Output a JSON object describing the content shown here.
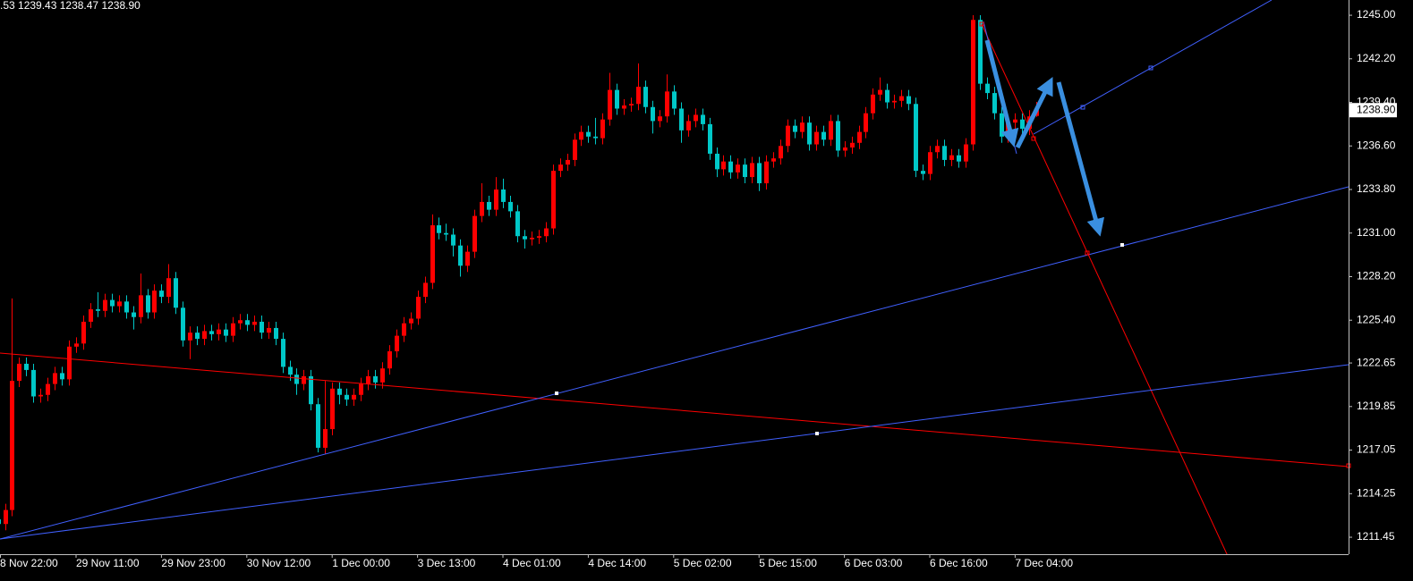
{
  "chart_data": {
    "type": "candlestick",
    "ohlc_label": ".53 1239.43 1238.47 1238.90",
    "current_price_label": "1238.90",
    "up_color": "#ff0000",
    "down_color": "#00c8c8",
    "categories": [
      "8 Nov 22:00",
      null,
      null,
      null,
      null,
      null,
      null,
      null,
      null,
      null,
      null,
      null,
      "29 Nov 11:00",
      null,
      null,
      null,
      null,
      null,
      null,
      null,
      null,
      null,
      null,
      null,
      "29 Nov 23:00",
      null,
      null,
      null,
      null,
      null,
      null,
      null,
      null,
      null,
      null,
      null,
      "30 Nov 12:00",
      null,
      null,
      null,
      null,
      null,
      null,
      null,
      null,
      null,
      null,
      null,
      "1 Dec 00:00",
      null,
      null,
      null,
      null,
      null,
      null,
      null,
      null,
      null,
      null,
      null,
      "3 Dec 13:00",
      null,
      null,
      null,
      null,
      null,
      null,
      null,
      null,
      null,
      null,
      null,
      "4 Dec 01:00",
      null,
      null,
      null,
      null,
      null,
      null,
      null,
      null,
      null,
      null,
      null,
      "4 Dec 14:00",
      null,
      null,
      null,
      null,
      null,
      null,
      null,
      null,
      null,
      null,
      null,
      "5 Dec 02:00",
      null,
      null,
      null,
      null,
      null,
      null,
      null,
      null,
      null,
      null,
      null,
      "5 Dec 15:00",
      null,
      null,
      null,
      null,
      null,
      null,
      null,
      null,
      null,
      null,
      null,
      "6 Dec 03:00",
      null,
      null,
      null,
      null,
      null,
      null,
      null,
      null,
      null,
      null,
      null,
      "6 Dec 16:00",
      null,
      null,
      null,
      null,
      null,
      null,
      null,
      null,
      null,
      null,
      null,
      "7 Dec 04:00",
      null,
      null,
      null
    ],
    "open": [
      1212.8,
      1212.6,
      1212.3,
      1213.2,
      1221.5,
      1222.6,
      1222.2,
      1220.5,
      1220.6,
      1221.3,
      1222.0,
      1221.6,
      1223.7,
      1223.9,
      1225.3,
      1226.1,
      1226.0,
      1226.7,
      1226.3,
      1226.6,
      1225.9,
      1225.6,
      1227.0,
      1225.9,
      1227.3,
      1226.9,
      1228.1,
      1226.2,
      1224.1,
      1224.6,
      1224.2,
      1224.7,
      1224.5,
      1224.8,
      1224.4,
      1225.2,
      1225.4,
      1225.1,
      1225.3,
      1224.6,
      1224.9,
      1224.2,
      1222.4,
      1221.9,
      1221.3,
      1221.8,
      1220.0,
      1217.2,
      1218.4,
      1221.0,
      1220.6,
      1220.3,
      1220.6,
      1221.3,
      1221.8,
      1221.4,
      1222.3,
      1223.4,
      1224.4,
      1225.2,
      1225.5,
      1226.9,
      1227.8,
      1231.5,
      1231.0,
      1230.9,
      1230.2,
      1228.9,
      1229.8,
      1232.1,
      1233.0,
      1232.5,
      1233.8,
      1233.0,
      1232.4,
      1230.8,
      1230.6,
      1230.7,
      1230.8,
      1231.3,
      1235.0,
      1235.4,
      1235.7,
      1237.0,
      1237.5,
      1237.2,
      1237.1,
      1238.3,
      1240.2,
      1239.0,
      1239.2,
      1239.3,
      1240.4,
      1239.1,
      1238.2,
      1238.5,
      1240.1,
      1239.0,
      1237.6,
      1238.2,
      1238.6,
      1238.0,
      1236.1,
      1235.1,
      1235.6,
      1234.9,
      1235.4,
      1234.6,
      1235.5,
      1234.2,
      1235.6,
      1235.8,
      1236.6,
      1237.9,
      1237.5,
      1238.1,
      1236.7,
      1237.5,
      1237.0,
      1238.2,
      1236.3,
      1236.5,
      1236.8,
      1237.5,
      1238.7,
      1239.9,
      1240.2,
      1239.4,
      1239.5,
      1239.8,
      1239.3,
      1235.0,
      1234.8,
      1236.2,
      1236.6,
      1235.7,
      1236.0,
      1235.6,
      1236.7,
      1244.7,
      1240.6,
      1240.0,
      1238.7,
      1237.2,
      1238.1,
      1238.3,
      1237.7,
      1238.53
    ],
    "high": [
      1213.2,
      1213.0,
      1213.6,
      1226.8,
      1223.0,
      1223.0,
      1222.6,
      1221.0,
      1221.7,
      1222.4,
      1222.4,
      1224.1,
      1224.3,
      1225.7,
      1226.5,
      1227.2,
      1227.1,
      1227.1,
      1227.0,
      1227.0,
      1226.3,
      1228.4,
      1227.4,
      1227.7,
      1227.7,
      1229.0,
      1228.5,
      1226.6,
      1225.0,
      1225.0,
      1225.1,
      1225.1,
      1225.2,
      1225.2,
      1225.6,
      1225.8,
      1225.8,
      1225.7,
      1225.7,
      1225.3,
      1225.3,
      1224.6,
      1222.8,
      1222.3,
      1222.2,
      1222.2,
      1220.4,
      1221.5,
      1221.4,
      1221.4,
      1221.0,
      1221.0,
      1221.7,
      1222.2,
      1222.2,
      1222.7,
      1223.8,
      1224.8,
      1225.6,
      1225.9,
      1227.3,
      1228.2,
      1232.2,
      1232.0,
      1231.6,
      1231.3,
      1230.6,
      1230.2,
      1232.5,
      1234.2,
      1233.4,
      1234.6,
      1234.5,
      1233.4,
      1232.8,
      1231.2,
      1231.1,
      1231.2,
      1231.7,
      1235.4,
      1235.8,
      1236.1,
      1237.4,
      1237.9,
      1237.9,
      1238.4,
      1238.7,
      1241.3,
      1240.6,
      1239.6,
      1239.7,
      1241.9,
      1240.8,
      1239.5,
      1238.9,
      1241.2,
      1240.5,
      1239.4,
      1238.6,
      1239.0,
      1239.0,
      1238.4,
      1236.5,
      1236.0,
      1236.0,
      1235.8,
      1235.8,
      1235.9,
      1235.9,
      1236.0,
      1236.2,
      1237.0,
      1238.3,
      1238.3,
      1238.5,
      1238.5,
      1237.9,
      1237.9,
      1238.6,
      1238.6,
      1236.9,
      1237.2,
      1237.9,
      1239.1,
      1240.3,
      1241.0,
      1240.6,
      1239.9,
      1240.2,
      1240.2,
      1239.7,
      1235.4,
      1236.6,
      1237.0,
      1237.0,
      1236.4,
      1236.4,
      1237.1,
      1245.0,
      1245.0,
      1241.0,
      1240.4,
      1239.1,
      1238.5,
      1238.7,
      1238.7,
      1238.9,
      1239.43
    ],
    "low": [
      1212.2,
      1211.9,
      1211.9,
      1212.8,
      1221.1,
      1221.8,
      1220.1,
      1220.1,
      1220.2,
      1220.9,
      1221.2,
      1221.2,
      1223.3,
      1223.5,
      1224.9,
      1225.6,
      1225.6,
      1225.9,
      1225.9,
      1225.5,
      1224.8,
      1225.2,
      1225.5,
      1225.5,
      1226.5,
      1226.5,
      1225.8,
      1223.7,
      1222.9,
      1223.8,
      1223.8,
      1224.1,
      1224.1,
      1224.0,
      1224.0,
      1224.8,
      1224.7,
      1224.7,
      1224.2,
      1224.2,
      1223.8,
      1222.0,
      1221.5,
      1220.6,
      1220.9,
      1219.6,
      1216.9,
      1216.8,
      1218.0,
      1220.0,
      1219.9,
      1219.9,
      1220.2,
      1220.9,
      1221.0,
      1221.0,
      1221.9,
      1223.0,
      1224.0,
      1224.8,
      1225.1,
      1226.5,
      1227.4,
      1230.6,
      1230.5,
      1229.5,
      1228.2,
      1228.5,
      1229.4,
      1231.7,
      1232.1,
      1232.1,
      1232.6,
      1232.0,
      1230.4,
      1230.0,
      1230.2,
      1230.3,
      1230.4,
      1230.9,
      1234.6,
      1235.0,
      1235.3,
      1236.6,
      1236.8,
      1236.7,
      1236.7,
      1237.9,
      1238.6,
      1238.6,
      1238.8,
      1238.9,
      1238.7,
      1237.4,
      1237.8,
      1238.1,
      1238.6,
      1236.8,
      1237.2,
      1237.8,
      1237.6,
      1235.7,
      1234.6,
      1234.7,
      1234.5,
      1234.5,
      1234.2,
      1234.2,
      1233.7,
      1233.8,
      1235.2,
      1235.4,
      1236.2,
      1237.1,
      1237.1,
      1236.3,
      1236.3,
      1236.6,
      1236.6,
      1235.9,
      1235.9,
      1236.1,
      1236.4,
      1237.1,
      1238.3,
      1239.5,
      1239.0,
      1239.0,
      1239.1,
      1238.9,
      1234.6,
      1234.4,
      1234.4,
      1235.8,
      1235.3,
      1235.3,
      1235.2,
      1235.2,
      1236.3,
      1240.2,
      1239.6,
      1238.3,
      1236.8,
      1236.8,
      1237.7,
      1237.3,
      1237.3,
      1238.47
    ],
    "close": [
      1212.6,
      1212.3,
      1213.2,
      1221.5,
      1222.6,
      1222.2,
      1220.5,
      1220.6,
      1221.3,
      1222.0,
      1221.6,
      1223.7,
      1223.9,
      1225.3,
      1226.1,
      1226.0,
      1226.7,
      1226.3,
      1226.6,
      1225.9,
      1225.6,
      1227.0,
      1225.9,
      1227.3,
      1226.9,
      1228.1,
      1226.2,
      1224.1,
      1224.6,
      1224.2,
      1224.7,
      1224.5,
      1224.8,
      1224.4,
      1225.2,
      1225.4,
      1225.1,
      1225.3,
      1224.6,
      1224.9,
      1224.2,
      1222.4,
      1221.9,
      1221.3,
      1221.8,
      1220.0,
      1217.2,
      1218.4,
      1221.0,
      1220.6,
      1220.3,
      1220.6,
      1221.3,
      1221.8,
      1221.4,
      1222.3,
      1223.4,
      1224.4,
      1225.2,
      1225.5,
      1226.9,
      1227.8,
      1231.5,
      1231.0,
      1230.9,
      1230.2,
      1228.9,
      1229.8,
      1232.1,
      1233.0,
      1232.5,
      1233.8,
      1233.0,
      1232.4,
      1230.8,
      1230.6,
      1230.7,
      1230.8,
      1231.3,
      1235.0,
      1235.4,
      1235.7,
      1237.0,
      1237.5,
      1237.2,
      1237.1,
      1238.3,
      1240.2,
      1239.0,
      1239.2,
      1239.3,
      1240.4,
      1239.1,
      1238.2,
      1238.5,
      1240.1,
      1239.0,
      1237.6,
      1238.2,
      1238.6,
      1238.0,
      1236.1,
      1235.1,
      1235.6,
      1234.9,
      1235.4,
      1234.6,
      1235.5,
      1234.2,
      1235.6,
      1235.8,
      1236.6,
      1237.9,
      1237.5,
      1238.1,
      1236.7,
      1237.5,
      1237.0,
      1238.2,
      1236.3,
      1236.5,
      1236.8,
      1237.5,
      1238.7,
      1239.9,
      1240.2,
      1239.4,
      1239.5,
      1239.8,
      1239.3,
      1235.0,
      1234.8,
      1236.2,
      1236.6,
      1235.7,
      1236.0,
      1235.6,
      1236.7,
      1244.7,
      1240.6,
      1240.0,
      1238.7,
      1237.2,
      1238.1,
      1238.3,
      1237.7,
      1238.5,
      1238.9
    ],
    "ylim": [
      1210.36,
      1245.98
    ],
    "yticks": [
      {
        "value": 1211.45,
        "label": "1211.45"
      },
      {
        "value": 1214.25,
        "label": "1214.25"
      },
      {
        "value": 1217.05,
        "label": "1217.05"
      },
      {
        "value": 1219.85,
        "label": "1219.85"
      },
      {
        "value": 1222.65,
        "label": "1222.65"
      },
      {
        "value": 1225.4,
        "label": "1225.40"
      },
      {
        "value": 1228.2,
        "label": "1228.20"
      },
      {
        "value": 1231,
        "label": "1231.00"
      },
      {
        "value": 1233.8,
        "label": "1233.80"
      },
      {
        "value": 1236.6,
        "label": "1236.60"
      },
      {
        "value": 1239.4,
        "label": "1239.40"
      },
      {
        "value": 1242.2,
        "label": "1242.20"
      },
      {
        "value": 1245,
        "label": "1245.00"
      }
    ]
  }
}
